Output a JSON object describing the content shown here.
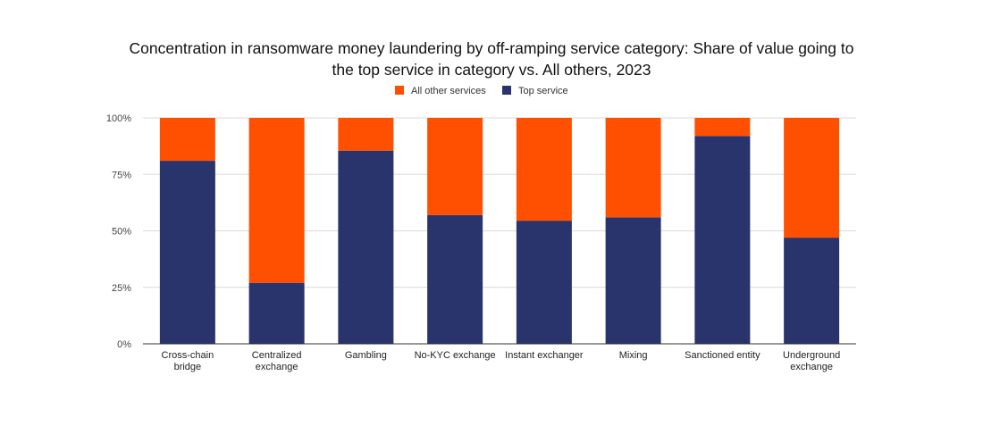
{
  "chart_data": {
    "type": "bar",
    "stacked": true,
    "title_lines": [
      "Concentration in ransomware money laundering by off-ramping service category: Share of value going to",
      "the top service in category vs. All others, 2023"
    ],
    "categories": [
      [
        "Cross-chain",
        "bridge"
      ],
      [
        "Centralized",
        "exchange"
      ],
      [
        "Gambling"
      ],
      [
        "No-KYC exchange"
      ],
      [
        "Instant exchanger"
      ],
      [
        "Mixing"
      ],
      [
        "Sanctioned entity"
      ],
      [
        "Underground",
        "exchange"
      ]
    ],
    "series": [
      {
        "name": "Top service",
        "color": "#29336c",
        "values": [
          81,
          27,
          85.5,
          57,
          54.5,
          56,
          92,
          47
        ]
      },
      {
        "name": "All other services",
        "color": "#fe5000",
        "values": [
          19,
          73,
          14.5,
          43,
          45.5,
          44,
          8,
          53
        ]
      }
    ],
    "legend_order": [
      "All other services",
      "Top service"
    ],
    "legend_position": "top",
    "ylim": [
      0,
      100
    ],
    "y_ticks": [
      0,
      25,
      50,
      75,
      100
    ],
    "y_tick_labels": [
      "0%",
      "25%",
      "50%",
      "75%",
      "100%"
    ],
    "grid": true
  }
}
